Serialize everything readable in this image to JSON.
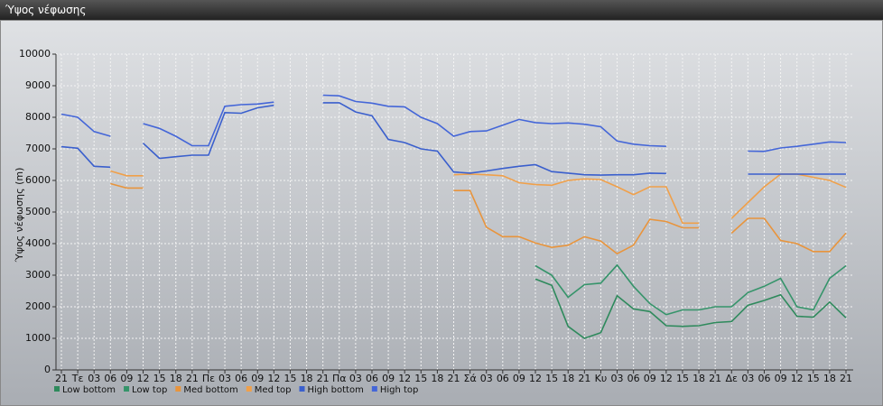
{
  "chart_data": {
    "type": "line",
    "title": "Ύψος νέφωσης",
    "y_label": "Ύψος νέφωσης (m)",
    "categories": [
      "21",
      "Τε",
      "03",
      "06",
      "09",
      "12",
      "15",
      "18",
      "21",
      "Πε",
      "03",
      "06",
      "09",
      "12",
      "15",
      "18",
      "21",
      "Πα",
      "03",
      "06",
      "09",
      "12",
      "15",
      "18",
      "21",
      "Σά",
      "03",
      "06",
      "09",
      "12",
      "15",
      "18",
      "21",
      "Κυ",
      "03",
      "06",
      "09",
      "12",
      "15",
      "18",
      "21",
      "Δε",
      "03",
      "06",
      "09",
      "12",
      "15",
      "18",
      "21"
    ],
    "ylim": [
      0,
      10000
    ],
    "yticks": [
      0,
      1000,
      2000,
      3000,
      4000,
      5000,
      6000,
      7000,
      8000,
      9000,
      10000
    ],
    "grid": true,
    "series": [
      {
        "name": "Low bottom",
        "color": "#2e8a5c",
        "values": [
          null,
          null,
          null,
          null,
          null,
          null,
          null,
          null,
          null,
          null,
          null,
          null,
          null,
          null,
          null,
          null,
          null,
          null,
          null,
          null,
          null,
          null,
          null,
          null,
          null,
          null,
          null,
          null,
          null,
          2880,
          2680,
          1380,
          1000,
          1180,
          2350,
          1930,
          1850,
          1400,
          1380,
          1400,
          1500,
          1530,
          2050,
          2200,
          2380,
          1700,
          1670,
          2150,
          1650
        ]
      },
      {
        "name": "Low top",
        "color": "#35946a",
        "values": [
          null,
          null,
          null,
          null,
          null,
          null,
          null,
          null,
          null,
          null,
          null,
          null,
          null,
          null,
          null,
          null,
          null,
          null,
          null,
          null,
          null,
          null,
          null,
          null,
          null,
          null,
          null,
          null,
          null,
          3300,
          3000,
          2300,
          2700,
          2750,
          3320,
          2650,
          2100,
          1750,
          1900,
          1900,
          2000,
          2000,
          2450,
          2650,
          2900,
          2000,
          1900,
          2900,
          3300
        ]
      },
      {
        "name": "Med bottom",
        "color": "#e8943c",
        "values": [
          null,
          null,
          null,
          5900,
          5760,
          5760,
          null,
          null,
          null,
          null,
          null,
          null,
          null,
          null,
          null,
          null,
          null,
          null,
          null,
          null,
          null,
          null,
          null,
          null,
          5680,
          5680,
          4520,
          4220,
          4220,
          4020,
          3880,
          3950,
          4220,
          4080,
          3680,
          3950,
          4770,
          4700,
          4500,
          4500,
          null,
          4330,
          4800,
          4800,
          4100,
          4000,
          3750,
          3750,
          4330
        ]
      },
      {
        "name": "Med top",
        "color": "#f0a04a",
        "values": [
          null,
          null,
          null,
          6300,
          6150,
          6150,
          null,
          null,
          null,
          null,
          null,
          null,
          null,
          null,
          null,
          null,
          null,
          null,
          null,
          null,
          null,
          null,
          null,
          null,
          6180,
          6200,
          6180,
          6150,
          5930,
          5870,
          5850,
          6000,
          6050,
          6030,
          5800,
          5550,
          5800,
          5800,
          4650,
          4650,
          null,
          4800,
          5300,
          5800,
          6200,
          6200,
          6100,
          6000,
          5780
        ]
      },
      {
        "name": "High bottom",
        "color": "#3a5fcd",
        "values": [
          7070,
          7020,
          6450,
          6420,
          null,
          7180,
          6700,
          6750,
          6800,
          6800,
          8150,
          8130,
          8300,
          8380,
          null,
          null,
          8460,
          8460,
          8170,
          8050,
          7300,
          7200,
          7000,
          6930,
          6270,
          6230,
          6300,
          6380,
          6450,
          6500,
          6280,
          6230,
          6180,
          6170,
          6180,
          6180,
          6230,
          6220,
          null,
          null,
          null,
          null,
          6200,
          6200,
          6200,
          6200,
          6200,
          6200,
          6200
        ]
      },
      {
        "name": "High top",
        "color": "#4466d8",
        "values": [
          8100,
          8000,
          7550,
          7400,
          null,
          7800,
          7650,
          7400,
          7100,
          7100,
          8350,
          8400,
          8420,
          8480,
          null,
          null,
          8700,
          8680,
          8500,
          8450,
          8350,
          8330,
          8000,
          7800,
          7400,
          7550,
          7570,
          7750,
          7930,
          7830,
          7800,
          7820,
          7780,
          7700,
          7250,
          7150,
          7100,
          7080,
          null,
          null,
          null,
          null,
          6930,
          6920,
          7030,
          7080,
          7150,
          7220,
          7200
        ]
      }
    ]
  }
}
